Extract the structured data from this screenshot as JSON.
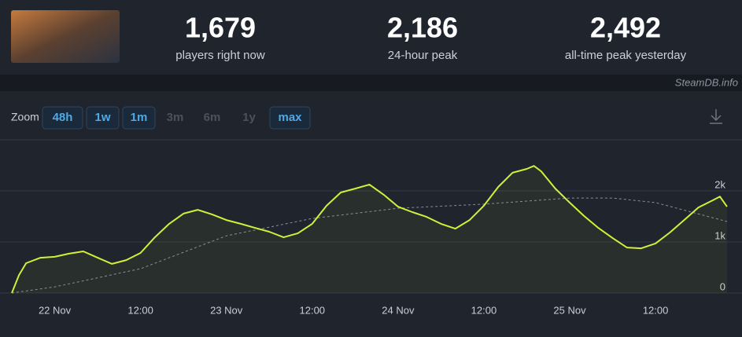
{
  "header": {
    "stats": [
      {
        "value": "1,679",
        "label": "players right now"
      },
      {
        "value": "2,186",
        "label": "24-hour peak"
      },
      {
        "value": "2,492",
        "label": "all-time peak yesterday"
      }
    ]
  },
  "watermark": "SteamDB.info",
  "zoom": {
    "label": "Zoom",
    "options": [
      {
        "label": "48h",
        "enabled": true
      },
      {
        "label": "1w",
        "enabled": true
      },
      {
        "label": "1m",
        "enabled": true
      },
      {
        "label": "3m",
        "enabled": false
      },
      {
        "label": "6m",
        "enabled": false
      },
      {
        "label": "1y",
        "enabled": false
      },
      {
        "label": "max",
        "enabled": true
      }
    ]
  },
  "chart_data": {
    "type": "line",
    "color": "#d2ef3a",
    "trend_color": "#8a8f98",
    "x": [
      -6,
      -5,
      -4,
      -2,
      0,
      2,
      4,
      6,
      8,
      10,
      12,
      14,
      16,
      18,
      20,
      22,
      24,
      26,
      28,
      30,
      32,
      34,
      36,
      38,
      40,
      42,
      44,
      46,
      48,
      50,
      52,
      54,
      56,
      58,
      60,
      62,
      64,
      66,
      67,
      68,
      70,
      72,
      74,
      76,
      78,
      80,
      82,
      84,
      86,
      88,
      90,
      92,
      93,
      94
    ],
    "values": [
      0,
      350,
      585,
      690,
      710,
      770,
      815,
      690,
      570,
      645,
      785,
      1090,
      1355,
      1555,
      1630,
      1540,
      1430,
      1355,
      1275,
      1200,
      1090,
      1170,
      1355,
      1710,
      1970,
      2045,
      2125,
      1925,
      1690,
      1585,
      1490,
      1355,
      1260,
      1430,
      1710,
      2075,
      2355,
      2430,
      2490,
      2385,
      2045,
      1770,
      1510,
      1275,
      1075,
      890,
      875,
      970,
      1185,
      1430,
      1675,
      1815,
      1890,
      1690
    ],
    "trend_x": [
      -6,
      0,
      12,
      24,
      36,
      48,
      60,
      72,
      78,
      84,
      94
    ],
    "trend": [
      0,
      120,
      475,
      1120,
      1460,
      1660,
      1740,
      1860,
      1860,
      1770,
      1400
    ],
    "xlim": [
      -6,
      94
    ],
    "xticks": [
      {
        "value": 0,
        "label": "22 Nov"
      },
      {
        "value": 12,
        "label": "12:00"
      },
      {
        "value": 24,
        "label": "23 Nov"
      },
      {
        "value": 36,
        "label": "12:00"
      },
      {
        "value": 48,
        "label": "24 Nov"
      },
      {
        "value": 60,
        "label": "12:00"
      },
      {
        "value": 72,
        "label": "25 Nov"
      },
      {
        "value": 84,
        "label": "12:00"
      }
    ],
    "ylim": [
      0,
      3000
    ],
    "yticks": [
      0,
      {
        "value": 1000,
        "label": "1k"
      },
      {
        "value": 2000,
        "label": "2k"
      },
      3000
    ],
    "ytick_labels_shown": [
      true,
      true,
      true,
      false
    ],
    "grid": true
  }
}
